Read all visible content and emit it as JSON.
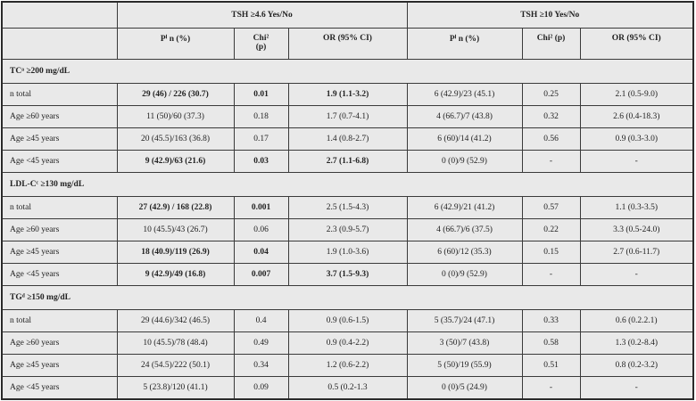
{
  "header": {
    "group1": "TSH ≥4.6 Yes/No",
    "group2": "TSH ≥10 Yes/No",
    "col_p": "Pⁱ n (%)",
    "col_chi_a": "Chi²",
    "col_chi_b": "(p)",
    "col_chi2": "Chi² (p)",
    "col_or": "OR (95% CI)"
  },
  "sections": [
    {
      "title": "TCᵃ ≥200 mg/dL",
      "rows": [
        {
          "label": "n total",
          "p1": "29 (46) / 226 (30.7)",
          "chi1": "0.01",
          "or1": "1.9 (1.1-3.2)",
          "bold": [
            true,
            true,
            true
          ],
          "p2": "6 (42.9)/23 (45.1)",
          "chi2": "0.25",
          "or2": "2.1 (0.5-9.0)"
        },
        {
          "label": "Age ≥60 years",
          "p1": "11 (50)/60 (37.3)",
          "chi1": "0.18",
          "or1": "1.7 (0.7-4.1)",
          "bold": [
            false,
            false,
            false
          ],
          "p2": "4 (66.7)/7 (43.8)",
          "chi2": "0.32",
          "or2": "2.6 (0.4-18.3)"
        },
        {
          "label": "Age ≥45 years",
          "p1": "20 (45.5)/163 (36.8)",
          "chi1": "0.17",
          "or1": "1.4 (0.8-2.7)",
          "bold": [
            false,
            false,
            false
          ],
          "p2": "6 (60)/14 (41.2)",
          "chi2": "0.56",
          "or2": "0.9 (0.3-3.0)"
        },
        {
          "label": "Age <45 years",
          "p1": "9 (42.9)/63 (21.6)",
          "chi1": "0.03",
          "or1": "2.7 (1.1-6.8)",
          "bold": [
            true,
            true,
            true
          ],
          "p2": "0 (0)/9 (52.9)",
          "chi2": "-",
          "or2": "-"
        }
      ]
    },
    {
      "title": "LDL-Cᶜ ≥130 mg/dL",
      "rows": [
        {
          "label": "n total",
          "p1": "27 (42.9) / 168 (22.8)",
          "chi1": "0.001",
          "or1": "2.5 (1.5-4.3)",
          "bold": [
            true,
            true,
            false
          ],
          "p2": "6 (42.9)/21 (41.2)",
          "chi2": "0.57",
          "or2": "1.1 (0.3-3.5)"
        },
        {
          "label": "Age ≥60 years",
          "p1": "10 (45.5)/43 (26.7)",
          "chi1": "0.06",
          "or1": "2.3 (0.9-5.7)",
          "bold": [
            false,
            false,
            false
          ],
          "p2": "4 (66.7)/6 (37.5)",
          "chi2": "0.22",
          "or2": "3.3 (0.5-24.0)"
        },
        {
          "label": "Age ≥45 years",
          "p1": "18 (40.9)/119 (26.9)",
          "chi1": "0.04",
          "or1": "1.9 (1.0-3.6)",
          "bold": [
            true,
            true,
            false
          ],
          "p2": "6 (60)/12 (35.3)",
          "chi2": "0.15",
          "or2": "2.7 (0.6-11.7)"
        },
        {
          "label": "Age <45 years",
          "p1": "9 (42.9)/49 (16.8)",
          "chi1": "0.007",
          "or1": "3.7 (1.5-9.3)",
          "bold": [
            true,
            true,
            true
          ],
          "p2": "0 (0)/9 (52.9)",
          "chi2": "-",
          "or2": "-"
        }
      ]
    },
    {
      "title": "TGᵈ ≥150 mg/dL",
      "rows": [
        {
          "label": "n total",
          "p1": "29 (44.6)/342 (46.5)",
          "chi1": "0.4",
          "or1": "0.9 (0.6-1.5)",
          "bold": [
            false,
            false,
            false
          ],
          "p2": "5 (35.7)/24 (47.1)",
          "chi2": "0.33",
          "or2": "0.6 (0.2.2.1)"
        },
        {
          "label": "Age ≥60 years",
          "p1": "10 (45.5)/78 (48.4)",
          "chi1": "0.49",
          "or1": "0.9 (0.4-2.2)",
          "bold": [
            false,
            false,
            false
          ],
          "p2": "3 (50)/7 (43.8)",
          "chi2": "0.58",
          "or2": "1.3 (0.2-8.4)"
        },
        {
          "label": "Age ≥45 years",
          "p1": "24 (54.5)/222 (50.1)",
          "chi1": "0.34",
          "or1": "1.2 (0.6-2.2)",
          "bold": [
            false,
            false,
            false
          ],
          "p2": "5 (50)/19 (55.9)",
          "chi2": "0.51",
          "or2": "0.8 (0.2-3.2)"
        },
        {
          "label": "Age <45 years",
          "p1": "5 (23.8)/120 (41.1)",
          "chi1": "0.09",
          "or1": "0.5 (0.2-1.3",
          "bold": [
            false,
            false,
            false
          ],
          "p2": "0 (0)/5 (24.9)",
          "chi2": "-",
          "or2": "-"
        }
      ]
    }
  ]
}
